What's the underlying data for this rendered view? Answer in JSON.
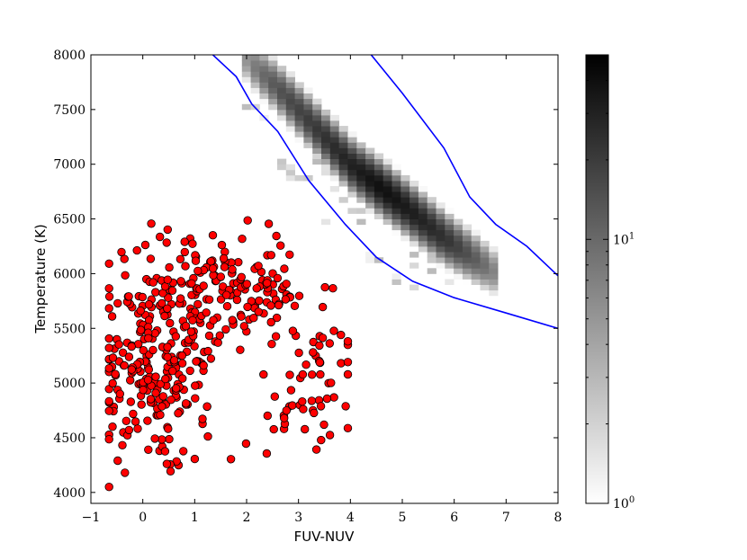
{
  "chart_data": {
    "type": "scatter",
    "xlabel": "FUV-NUV",
    "ylabel": "Temperature (K)",
    "xlim": [
      -1,
      8
    ],
    "ylim": [
      3900,
      8000
    ],
    "x_ticks": [
      -1,
      0,
      1,
      2,
      3,
      4,
      5,
      6,
      7,
      8
    ],
    "y_ticks": [
      4000,
      4500,
      5000,
      5500,
      6000,
      6500,
      7000,
      7500,
      8000
    ],
    "colorbar": {
      "scale": "log",
      "range": [
        1,
        50
      ],
      "ticks": [
        {
          "base": "10",
          "exp": "0",
          "value": 1
        },
        {
          "base": "10",
          "exp": "1",
          "value": 10
        }
      ],
      "colormap": "greys"
    },
    "grid": false,
    "density_ridge": {
      "description_free": true,
      "ridge": [
        [
          1.9,
          8000,
          4
        ],
        [
          2.6,
          7700,
          14
        ],
        [
          3.4,
          7300,
          22
        ],
        [
          4.0,
          7000,
          30
        ],
        [
          4.6,
          6780,
          40
        ],
        [
          5.2,
          6560,
          32
        ],
        [
          5.8,
          6330,
          24
        ],
        [
          6.3,
          6170,
          14
        ],
        [
          6.8,
          6010,
          6
        ]
      ],
      "bin_size": [
        0.17,
        50
      ]
    },
    "boundary_curves": [
      {
        "color": "#0000ff",
        "points": [
          [
            1.35,
            8000
          ],
          [
            1.8,
            7800
          ],
          [
            2.1,
            7550
          ],
          [
            2.6,
            7300
          ],
          [
            3.2,
            6850
          ],
          [
            3.9,
            6450
          ],
          [
            4.5,
            6150
          ],
          [
            5.2,
            5930
          ],
          [
            6.0,
            5780
          ],
          [
            7.0,
            5640
          ],
          [
            8.0,
            5500
          ]
        ]
      },
      {
        "color": "#0000ff",
        "points": [
          [
            4.4,
            8000
          ],
          [
            5.0,
            7650
          ],
          [
            5.8,
            7150
          ],
          [
            6.3,
            6700
          ],
          [
            6.8,
            6450
          ],
          [
            7.4,
            6250
          ],
          [
            8.0,
            5980
          ]
        ]
      }
    ],
    "scatter_style": {
      "marker_color": "#ff0000",
      "edge_color": "#000000"
    },
    "scatter_params": {
      "n": 460
    }
  }
}
